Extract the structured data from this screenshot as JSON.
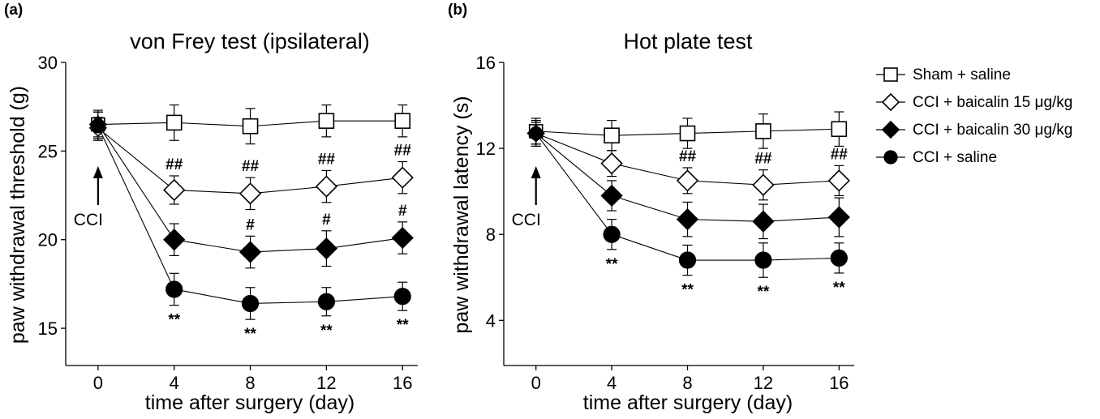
{
  "chart_data": [
    {
      "type": "line",
      "panel_label": "(a)",
      "title": "von Frey test (ipsilateral)",
      "xlabel": "time after surgery (day)",
      "ylabel": "paw withdrawal threshold (g)",
      "x": [
        0,
        4,
        8,
        12,
        16
      ],
      "x_ticks": [
        "0",
        "4",
        "8",
        "12",
        "16"
      ],
      "xlim": [
        -1.7,
        16.8
      ],
      "ylim": [
        12.9,
        30
      ],
      "y_ticks": [
        "15",
        "20",
        "25",
        "30"
      ],
      "arrow_label": "CCI",
      "series": [
        {
          "name": "Sham + saline",
          "marker": "square-open",
          "values": [
            26.5,
            26.6,
            26.4,
            26.7,
            26.7
          ],
          "error": [
            0.8,
            1.0,
            1.0,
            0.9,
            0.9
          ],
          "annotations": [
            "",
            "",
            "",
            "",
            ""
          ]
        },
        {
          "name": "CCI + baicalin 15 μg/kg",
          "marker": "diamond-open",
          "values": [
            26.3,
            22.8,
            22.6,
            23.0,
            23.5
          ],
          "error": [
            0.6,
            0.8,
            0.9,
            0.9,
            0.9
          ],
          "annotations": [
            "",
            "##",
            "##",
            "##",
            "##"
          ]
        },
        {
          "name": "CCI + baicalin 30 μg/kg",
          "marker": "diamond-filled",
          "values": [
            26.5,
            20.0,
            19.3,
            19.5,
            20.1
          ],
          "error": [
            0.7,
            0.9,
            0.9,
            1.0,
            0.9
          ],
          "annotations": [
            "",
            "",
            "#",
            "#",
            "#"
          ]
        },
        {
          "name": "CCI + saline",
          "marker": "circle-filled",
          "values": [
            26.4,
            17.2,
            16.4,
            16.5,
            16.8
          ],
          "error": [
            0.8,
            0.9,
            0.9,
            0.8,
            0.8
          ],
          "annotations": [
            "",
            "**",
            "**",
            "**",
            "**"
          ]
        }
      ]
    },
    {
      "type": "line",
      "panel_label": "(b)",
      "title": "Hot plate test",
      "xlabel": "time after surgery (day)",
      "ylabel": "paw withdrawal latency (s)",
      "x": [
        0,
        4,
        8,
        12,
        16
      ],
      "x_ticks": [
        "0",
        "4",
        "8",
        "12",
        "16"
      ],
      "xlim": [
        -1.7,
        16.8
      ],
      "ylim": [
        1.9,
        16
      ],
      "y_ticks": [
        "4",
        "8",
        "12",
        "16"
      ],
      "arrow_label": "CCI",
      "series": [
        {
          "name": "Sham + saline",
          "marker": "square-open",
          "values": [
            12.8,
            12.6,
            12.7,
            12.8,
            12.9
          ],
          "error": [
            0.6,
            0.7,
            0.7,
            0.8,
            0.8
          ],
          "annotations": [
            "",
            "",
            "",
            "",
            ""
          ]
        },
        {
          "name": "CCI + baicalin 15 μg/kg",
          "marker": "diamond-open",
          "values": [
            12.7,
            11.3,
            10.5,
            10.3,
            10.5
          ],
          "error": [
            0.5,
            0.6,
            0.6,
            0.7,
            0.7
          ],
          "annotations": [
            "",
            "",
            "##",
            "##",
            "##"
          ]
        },
        {
          "name": "CCI + baicalin 30 μg/kg",
          "marker": "diamond-filled",
          "values": [
            12.7,
            9.8,
            8.7,
            8.6,
            8.8
          ],
          "error": [
            0.6,
            0.7,
            0.8,
            0.8,
            0.9
          ],
          "annotations": [
            "",
            "",
            "",
            "",
            ""
          ]
        },
        {
          "name": "CCI + saline",
          "marker": "circle-filled",
          "values": [
            12.7,
            8.0,
            6.8,
            6.8,
            6.9
          ],
          "error": [
            0.6,
            0.7,
            0.7,
            0.8,
            0.7
          ],
          "annotations": [
            "",
            "**",
            "**",
            "**",
            "**"
          ]
        }
      ]
    }
  ],
  "legend": {
    "placement": "right",
    "items": [
      {
        "label": "Sham + saline",
        "marker": "square-open"
      },
      {
        "label": "CCI + baicalin 15 μg/kg",
        "marker": "diamond-open"
      },
      {
        "label": "CCI + baicalin 30 μg/kg",
        "marker": "diamond-filled"
      },
      {
        "label": "CCI + saline",
        "marker": "circle-filled"
      }
    ]
  },
  "colors": {
    "ink": "#000000",
    "background": "#ffffff"
  }
}
